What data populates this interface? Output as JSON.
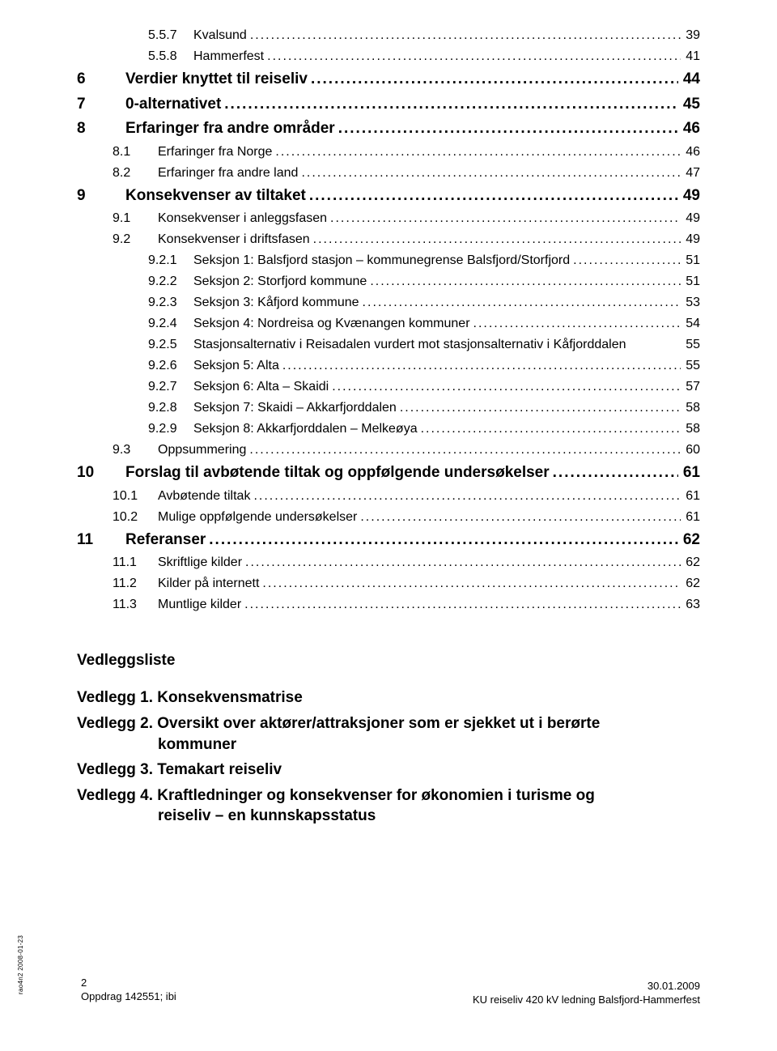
{
  "toc": [
    {
      "lvl": "l3",
      "num": "5.5.7",
      "title": "Kvalsund",
      "pg": "39"
    },
    {
      "lvl": "l3",
      "num": "5.5.8",
      "title": "Hammerfest",
      "pg": "41"
    },
    {
      "lvl": "l1",
      "num": "6",
      "title": "Verdier knyttet til reiseliv",
      "pg": "44"
    },
    {
      "lvl": "l1",
      "num": "7",
      "title": "0-alternativet",
      "pg": "45"
    },
    {
      "lvl": "l1",
      "num": "8",
      "title": "Erfaringer fra andre områder",
      "pg": "46"
    },
    {
      "lvl": "l2",
      "num": "8.1",
      "title": "Erfaringer fra Norge",
      "pg": "46"
    },
    {
      "lvl": "l2",
      "num": "8.2",
      "title": "Erfaringer fra andre land",
      "pg": "47"
    },
    {
      "lvl": "l1",
      "num": "9",
      "title": "Konsekvenser av tiltaket",
      "pg": "49"
    },
    {
      "lvl": "l2",
      "num": "9.1",
      "title": "Konsekvenser i anleggsfasen",
      "pg": "49"
    },
    {
      "lvl": "l2",
      "num": "9.2",
      "title": "Konsekvenser i driftsfasen",
      "pg": "49"
    },
    {
      "lvl": "l3",
      "num": "9.2.1",
      "title": "Seksjon 1: Balsfjord stasjon – kommunegrense Balsfjord/Storfjord",
      "pg": "51"
    },
    {
      "lvl": "l3",
      "num": "9.2.2",
      "title": "Seksjon 2: Storfjord kommune",
      "pg": "51"
    },
    {
      "lvl": "l3",
      "num": "9.2.3",
      "title": "Seksjon 3: Kåfjord kommune",
      "pg": "53"
    },
    {
      "lvl": "l3",
      "num": "9.2.4",
      "title": "Seksjon 4: Nordreisa og Kvænangen kommuner",
      "pg": "54"
    },
    {
      "lvl": "l3",
      "num": "9.2.5",
      "title": "Stasjonsalternativ i Reisadalen vurdert mot stasjonsalternativ i Kåfjorddalen",
      "pg": "55",
      "nodots": true
    },
    {
      "lvl": "l3",
      "num": "9.2.6",
      "title": "Seksjon 5: Alta",
      "pg": "55"
    },
    {
      "lvl": "l3",
      "num": "9.2.7",
      "title": "Seksjon 6: Alta – Skaidi",
      "pg": "57"
    },
    {
      "lvl": "l3",
      "num": "9.2.8",
      "title": "Seksjon 7: Skaidi – Akkarfjorddalen",
      "pg": "58"
    },
    {
      "lvl": "l3",
      "num": "9.2.9",
      "title": "Seksjon 8: Akkarfjorddalen – Melkeøya",
      "pg": "58"
    },
    {
      "lvl": "l2",
      "num": "9.3",
      "title": "Oppsummering",
      "pg": "60"
    },
    {
      "lvl": "l1",
      "num": "10",
      "title": "Forslag til avbøtende tiltak og oppfølgende undersøkelser",
      "pg": "61"
    },
    {
      "lvl": "l2",
      "num": "10.1",
      "title": "Avbøtende tiltak",
      "pg": "61"
    },
    {
      "lvl": "l2",
      "num": "10.2",
      "title": "Mulige oppfølgende undersøkelser",
      "pg": "61"
    },
    {
      "lvl": "l1",
      "num": "11",
      "title": "Referanser",
      "pg": "62"
    },
    {
      "lvl": "l2",
      "num": "11.1",
      "title": "Skriftlige kilder",
      "pg": "62"
    },
    {
      "lvl": "l2",
      "num": "11.2",
      "title": "Kilder på internett",
      "pg": "62"
    },
    {
      "lvl": "l2",
      "num": "11.3",
      "title": "Muntlige kilder",
      "pg": "63"
    }
  ],
  "vedlegg": {
    "heading": "Vedleggsliste",
    "items": [
      {
        "line1": "Vedlegg 1. Konsekvensmatrise"
      },
      {
        "line1": "Vedlegg 2. Oversikt over aktører/attraksjoner som er sjekket ut i berørte",
        "line2": "kommuner"
      },
      {
        "line1": "Vedlegg 3. Temakart reiseliv"
      },
      {
        "line1": "Vedlegg 4. Kraftledninger og konsekvenser for økonomien i turisme og",
        "line2": "reiseliv – en kunnskapsstatus"
      }
    ]
  },
  "side_text": "rao4n2 2008-01-23",
  "footer": {
    "page": "2",
    "project": "Oppdrag 142551; ibi",
    "date": "30.01.2009",
    "doc": "KU reiseliv 420 kV ledning Balsfjord-Hammerfest"
  }
}
